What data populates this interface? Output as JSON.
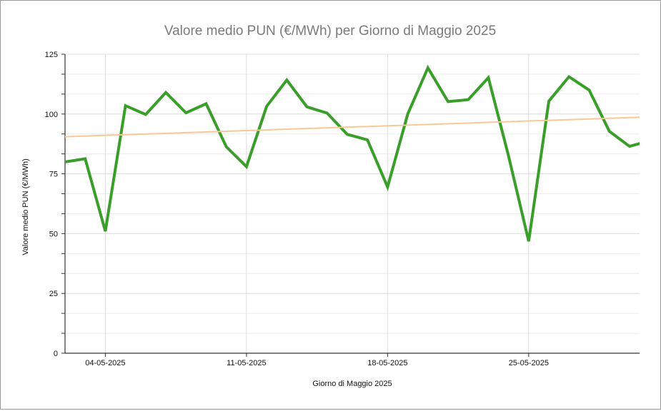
{
  "chart_data": {
    "type": "line",
    "title": "Valore medio PUN (€/MWh) per Giorno di Maggio 2025",
    "xlabel": "Giorno di Maggio 2025",
    "ylabel": "Valore medio PUN (€/MWh)",
    "ylim": [
      0,
      125
    ],
    "yticks": [
      0,
      25,
      50,
      75,
      100,
      125
    ],
    "xlim": [
      2,
      30.5
    ],
    "xticks": [
      {
        "day": 4,
        "label": "04-05-2025"
      },
      {
        "day": 11,
        "label": "11-05-2025"
      },
      {
        "day": 18,
        "label": "18-05-2025"
      },
      {
        "day": 25,
        "label": "25-05-2025"
      }
    ],
    "grid": true,
    "series": [
      {
        "kind": "data",
        "color": "#3a9e2a",
        "x": [
          2,
          3,
          4,
          5,
          6,
          7,
          8,
          9,
          10,
          11,
          12,
          13,
          14,
          15,
          16,
          17,
          18,
          19,
          20,
          21,
          22,
          23,
          24,
          25,
          26,
          27,
          28,
          29,
          30,
          31
        ],
        "values": [
          80,
          81.3,
          51,
          103.5,
          99.8,
          109,
          100.5,
          104.3,
          86.3,
          78,
          103.2,
          114.2,
          103,
          100.4,
          91.5,
          89.2,
          69.5,
          100,
          119.3,
          105.2,
          106,
          115.2,
          82.5,
          46.8,
          105.4,
          115.6,
          110,
          92.8,
          86.5,
          88.8
        ]
      },
      {
        "kind": "trend",
        "color": "#f8c996",
        "x": [
          2,
          31
        ],
        "values": [
          90.5,
          98.8
        ]
      }
    ]
  }
}
